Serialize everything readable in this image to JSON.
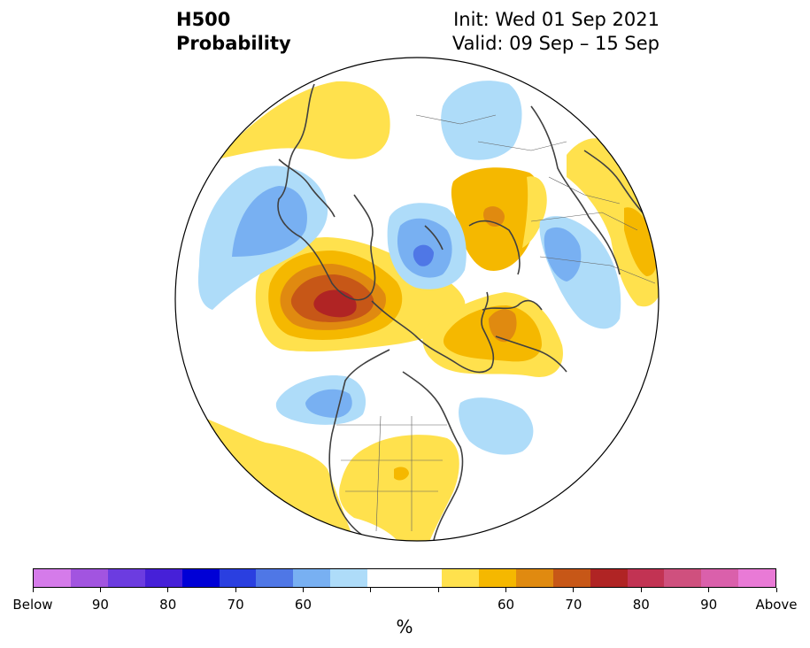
{
  "header": {
    "title_line1": "H500",
    "title_line2": "Probability",
    "init_text": "Init: Wed 01 Sep 2021",
    "valid_text": "Valid: 09 Sep – 15 Sep"
  },
  "map": {
    "projection": "north-polar-stereographic",
    "region": "Northern Hemisphere",
    "anomaly_regions": [
      {
        "id": "ne-pacific-ridge-core",
        "category": "above",
        "level": 80
      },
      {
        "id": "ne-pacific-ridge",
        "category": "above",
        "level": 70
      },
      {
        "id": "greenland-ridge",
        "category": "above",
        "level": 65
      },
      {
        "id": "scandinavia-ridge",
        "category": "above",
        "level": 65
      },
      {
        "id": "eastern-us-ridge",
        "category": "above",
        "level": 60
      },
      {
        "id": "bering-trough",
        "category": "below",
        "level": 70
      },
      {
        "id": "northern-russia-trough",
        "category": "below",
        "level": 60
      },
      {
        "id": "western-canada-trough",
        "category": "below",
        "level": 65
      },
      {
        "id": "siberia-trough",
        "category": "below",
        "level": 60
      },
      {
        "id": "north-atlantic-trough",
        "category": "below",
        "level": 60
      }
    ]
  },
  "colorbar": {
    "colors": [
      "#d57bea",
      "#a254e0",
      "#6c3ce0",
      "#4620d8",
      "#0000d6",
      "#2a3fe0",
      "#4f77e6",
      "#78b0f2",
      "#aedcf9",
      "#ffffff",
      "#ffffff",
      "#ffe14d",
      "#f5b800",
      "#e08a10",
      "#c75717",
      "#b02424",
      "#c23353",
      "#cf507e",
      "#da60ab",
      "#e97ad6"
    ],
    "tick_labels": [
      "Below",
      "90",
      "80",
      "70",
      "60",
      "",
      "",
      "60",
      "70",
      "80",
      "90",
      "Above"
    ],
    "unit_label": "%"
  }
}
